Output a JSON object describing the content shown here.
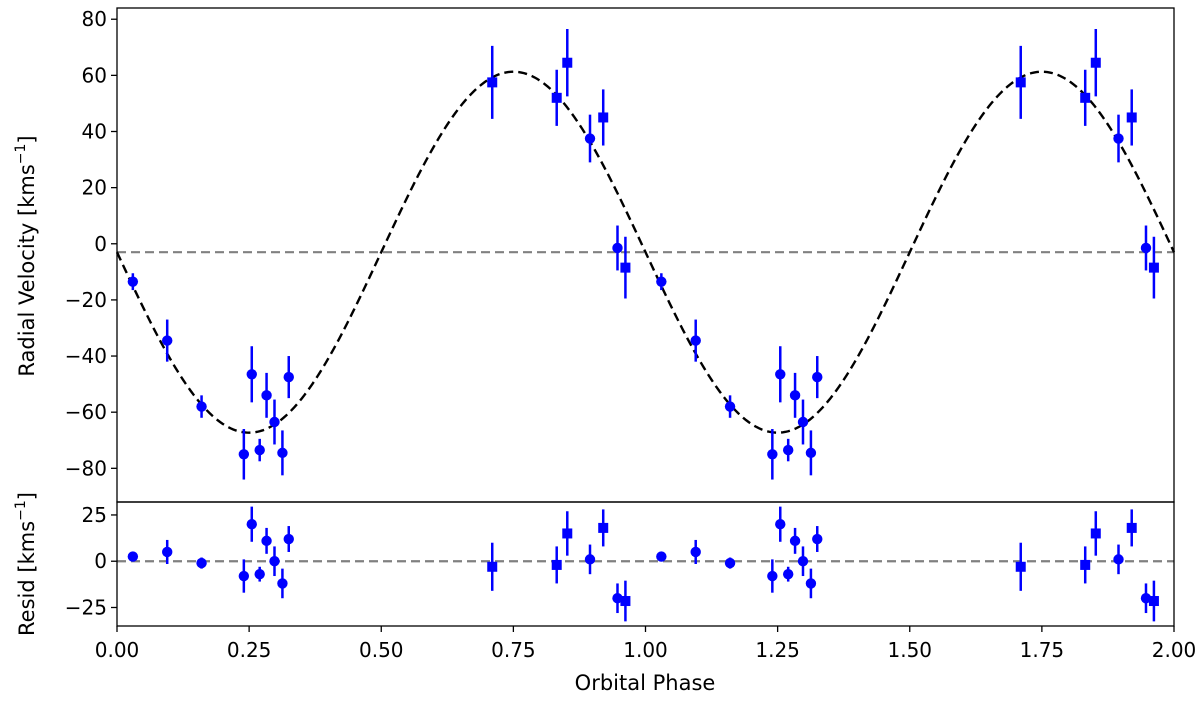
{
  "chart_data": {
    "type": "scatter",
    "xlabel": "Orbital Phase",
    "xlim": [
      0.0,
      2.0
    ],
    "xticks": [
      "0.00",
      "0.25",
      "0.50",
      "0.75",
      "1.00",
      "1.25",
      "1.50",
      "1.75",
      "2.00"
    ],
    "point_color": "#0000ff",
    "panels": [
      {
        "name": "radial-velocity",
        "ylabel": "Radial Velocity [kms",
        "ylabel_unit_exp": "−1",
        "ylabel_close": "]",
        "ylim": [
          -92,
          84
        ],
        "yticks": [
          "80",
          "60",
          "40",
          "20",
          "0",
          "−20",
          "−40",
          "−60",
          "−80"
        ],
        "model": {
          "style": "black dashed",
          "offset": -3,
          "amplitude": 64.3,
          "form": "offset - amplitude*sin(2*pi*phase)"
        },
        "reference_line": {
          "y": -3,
          "style": "gray dashed"
        },
        "series": [
          {
            "marker": "circle",
            "points": [
              {
                "x": 0.03,
                "y": -13.5,
                "err": 3
              },
              {
                "x": 0.095,
                "y": -34.5,
                "err": 7.5
              },
              {
                "x": 0.16,
                "y": -58,
                "err": 4
              },
              {
                "x": 0.24,
                "y": -75,
                "err": 9
              },
              {
                "x": 0.255,
                "y": -46.5,
                "err": 10
              },
              {
                "x": 0.27,
                "y": -73.5,
                "err": 4
              },
              {
                "x": 0.283,
                "y": -54,
                "err": 8
              },
              {
                "x": 0.298,
                "y": -63.5,
                "err": 8
              },
              {
                "x": 0.313,
                "y": -74.5,
                "err": 8
              },
              {
                "x": 0.325,
                "y": -47.5,
                "err": 7.5
              },
              {
                "x": 0.895,
                "y": 37.5,
                "err": 8.5
              },
              {
                "x": 0.947,
                "y": -1.5,
                "err": 8
              },
              {
                "x": 1.03,
                "y": -13.5,
                "err": 3
              },
              {
                "x": 1.095,
                "y": -34.5,
                "err": 7.5
              },
              {
                "x": 1.16,
                "y": -58,
                "err": 4
              },
              {
                "x": 1.24,
                "y": -75,
                "err": 9
              },
              {
                "x": 1.255,
                "y": -46.5,
                "err": 10
              },
              {
                "x": 1.27,
                "y": -73.5,
                "err": 4
              },
              {
                "x": 1.283,
                "y": -54,
                "err": 8
              },
              {
                "x": 1.298,
                "y": -63.5,
                "err": 8
              },
              {
                "x": 1.313,
                "y": -74.5,
                "err": 8
              },
              {
                "x": 1.325,
                "y": -47.5,
                "err": 7.5
              },
              {
                "x": 1.895,
                "y": 37.5,
                "err": 8.5
              },
              {
                "x": 1.947,
                "y": -1.5,
                "err": 8
              }
            ]
          },
          {
            "marker": "square",
            "points": [
              {
                "x": 0.71,
                "y": 57.5,
                "err": 13
              },
              {
                "x": 0.832,
                "y": 52,
                "err": 10
              },
              {
                "x": 0.852,
                "y": 64.5,
                "err": 12
              },
              {
                "x": 0.92,
                "y": 45,
                "err": 10
              },
              {
                "x": 0.962,
                "y": -8.5,
                "err": 11
              },
              {
                "x": 1.71,
                "y": 57.5,
                "err": 13
              },
              {
                "x": 1.832,
                "y": 52,
                "err": 10
              },
              {
                "x": 1.852,
                "y": 64.5,
                "err": 12
              },
              {
                "x": 1.92,
                "y": 45,
                "err": 10
              },
              {
                "x": 1.962,
                "y": -8.5,
                "err": 11
              }
            ]
          }
        ]
      },
      {
        "name": "residuals",
        "ylabel": "Resid [kms",
        "ylabel_unit_exp": "−1",
        "ylabel_close": "]",
        "ylim": [
          -35,
          32
        ],
        "yticks": [
          "25",
          "0",
          "−25"
        ],
        "reference_line": {
          "y": 0,
          "style": "gray dashed"
        },
        "series": [
          {
            "marker": "circle",
            "points": [
              {
                "x": 0.03,
                "y": 2.5,
                "err": 1
              },
              {
                "x": 0.095,
                "y": 5,
                "err": 6.5
              },
              {
                "x": 0.16,
                "y": -1,
                "err": 3
              },
              {
                "x": 0.24,
                "y": -8,
                "err": 9
              },
              {
                "x": 0.255,
                "y": 20,
                "err": 9.5
              },
              {
                "x": 0.27,
                "y": -7,
                "err": 4
              },
              {
                "x": 0.283,
                "y": 11,
                "err": 7
              },
              {
                "x": 0.298,
                "y": 0,
                "err": 8
              },
              {
                "x": 0.313,
                "y": -12,
                "err": 8
              },
              {
                "x": 0.325,
                "y": 12,
                "err": 7
              },
              {
                "x": 0.895,
                "y": 1,
                "err": 8
              },
              {
                "x": 0.947,
                "y": -20,
                "err": 8
              },
              {
                "x": 1.03,
                "y": 2.5,
                "err": 1
              },
              {
                "x": 1.095,
                "y": 5,
                "err": 6.5
              },
              {
                "x": 1.16,
                "y": -1,
                "err": 3
              },
              {
                "x": 1.24,
                "y": -8,
                "err": 9
              },
              {
                "x": 1.255,
                "y": 20,
                "err": 9.5
              },
              {
                "x": 1.27,
                "y": -7,
                "err": 4
              },
              {
                "x": 1.283,
                "y": 11,
                "err": 7
              },
              {
                "x": 1.298,
                "y": 0,
                "err": 8
              },
              {
                "x": 1.313,
                "y": -12,
                "err": 8
              },
              {
                "x": 1.325,
                "y": 12,
                "err": 7
              },
              {
                "x": 1.895,
                "y": 1,
                "err": 8
              },
              {
                "x": 1.947,
                "y": -20,
                "err": 8
              }
            ]
          },
          {
            "marker": "square",
            "points": [
              {
                "x": 0.71,
                "y": -3,
                "err": 13
              },
              {
                "x": 0.832,
                "y": -2,
                "err": 10
              },
              {
                "x": 0.852,
                "y": 15,
                "err": 12
              },
              {
                "x": 0.92,
                "y": 18,
                "err": 10
              },
              {
                "x": 0.962,
                "y": -21.5,
                "err": 11
              },
              {
                "x": 1.71,
                "y": -3,
                "err": 13
              },
              {
                "x": 1.832,
                "y": -2,
                "err": 10
              },
              {
                "x": 1.852,
                "y": 15,
                "err": 12
              },
              {
                "x": 1.92,
                "y": 18,
                "err": 10
              },
              {
                "x": 1.962,
                "y": -21.5,
                "err": 11
              }
            ]
          }
        ]
      }
    ]
  }
}
